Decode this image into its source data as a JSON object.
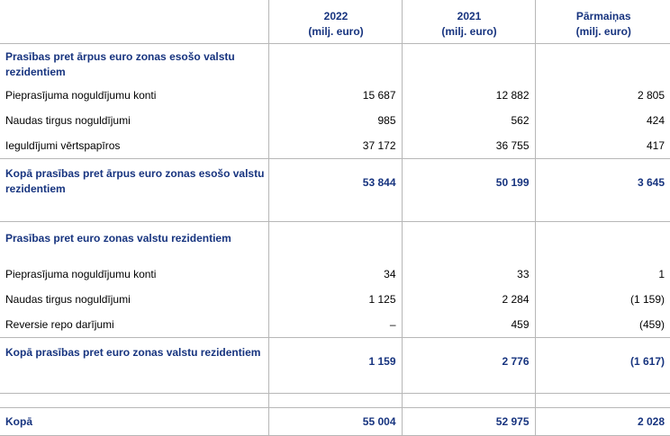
{
  "header": {
    "columns": [
      {
        "title": "2022",
        "unit": "(milj. euro)"
      },
      {
        "title": "2021",
        "unit": "(milj. euro)"
      },
      {
        "title": "Pārmaiņas",
        "unit": "(milj. euro)"
      }
    ]
  },
  "sections": [
    {
      "title": "Prasības pret ārpus euro zonas esošo valstu rezidentiem",
      "rows": [
        [
          "Pieprasījuma noguldījumu konti",
          "15 687",
          "12 882",
          "2 805"
        ],
        [
          "Naudas tirgus noguldījumi",
          "985",
          "562",
          "424"
        ],
        [
          "Ieguldījumi vērtspapīros",
          "37 172",
          "36 755",
          "417"
        ]
      ],
      "total": [
        "Kopā prasības pret ārpus euro zonas esošo valstu rezidentiem",
        "53 844",
        "50 199",
        "3 645"
      ]
    },
    {
      "title": "Prasības pret euro zonas valstu rezidentiem",
      "rows": [
        [
          "Pieprasījuma noguldījumu konti",
          "34",
          "33",
          "1"
        ],
        [
          "Naudas tirgus noguldījumi",
          "1 125",
          "2 284",
          "(1 159)"
        ],
        [
          "Reversie repo darījumi",
          "–",
          "459",
          "(459)"
        ]
      ],
      "total": [
        "Kopā prasības pret euro zonas valstu rezidentiem",
        "1 159",
        "2 776",
        "(1 617)"
      ]
    }
  ],
  "grand_total": [
    "Kopā",
    "55 004",
    "52 975",
    "2 028"
  ]
}
